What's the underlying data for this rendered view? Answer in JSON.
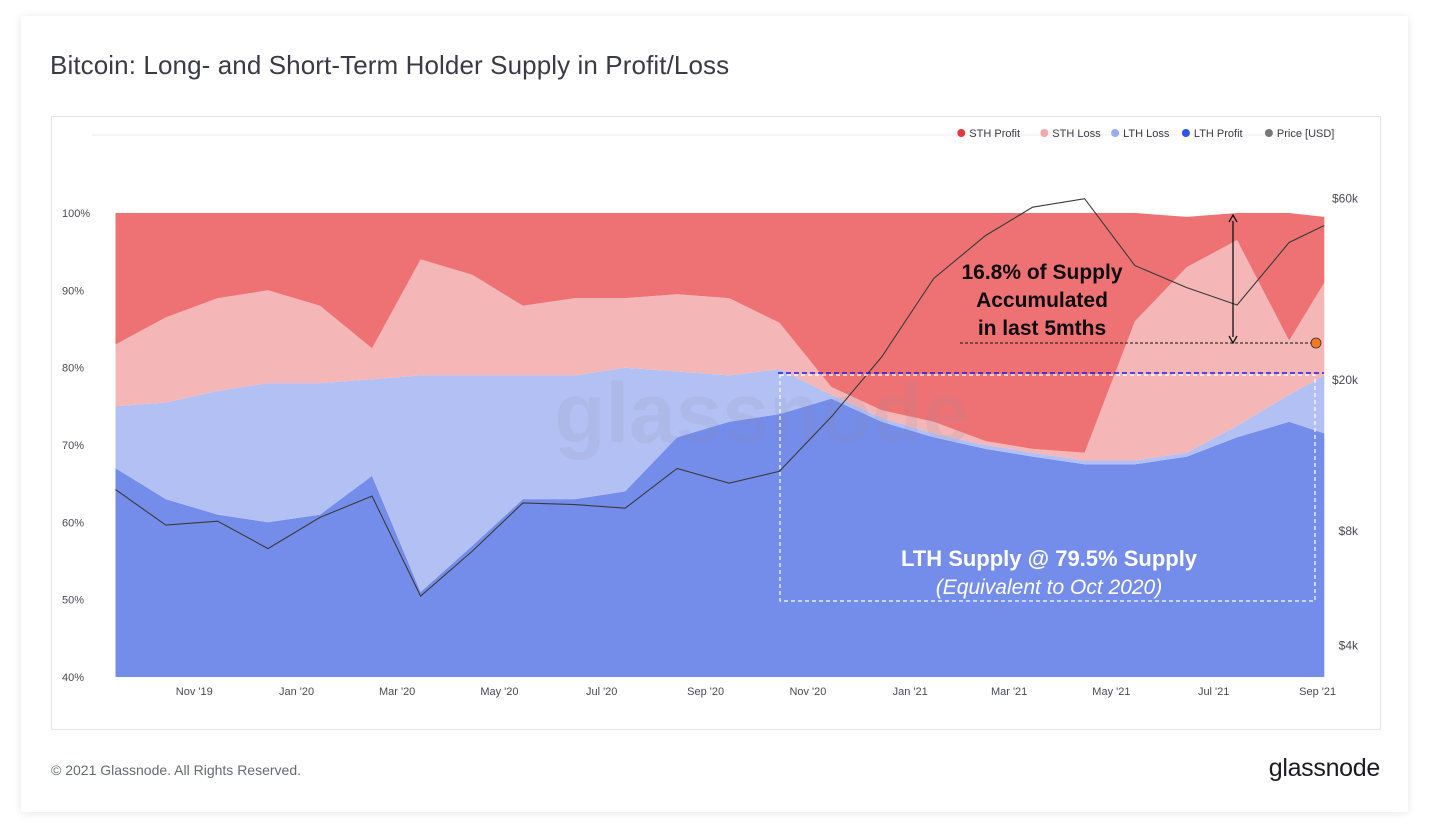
{
  "header": {
    "title": "Bitcoin: Long- and Short-Term Holder Supply in Profit/Loss"
  },
  "footer": {
    "copyright": "© 2021 Glassnode. All Rights Reserved.",
    "brand": "glassnode"
  },
  "watermark": "glassnode",
  "colors": {
    "sth_profit": "#ee7273",
    "sth_loss": "#f4b6b7",
    "lth_loss": "#b3c0f4",
    "lth_profit": "#758dea",
    "price": "#3a3a3a",
    "legend_sth_profit": "#e2393f",
    "legend_sth_loss": "#f2a7aa",
    "legend_lth_loss": "#9aaaf0",
    "legend_lth_profit": "#2d55e6",
    "legend_price": "#777777"
  },
  "chart_data": {
    "type": "area",
    "x_tick_labels": [
      "Nov '19",
      "Jan '20",
      "Mar '20",
      "May '20",
      "Jul '20",
      "Sep '20",
      "Nov '20",
      "Jan '21",
      "Mar '21",
      "May '21",
      "Jul '21",
      "Sep '21"
    ],
    "y_left_ticks": [
      "40%",
      "50%",
      "60%",
      "70%",
      "80%",
      "90%",
      "100%"
    ],
    "y_right_ticks": [
      "$4k",
      "$8k",
      "$20k",
      "$60k"
    ],
    "ylim_left": [
      40,
      100
    ],
    "price_scale": "log",
    "legend": [
      "STH Profit",
      "STH Loss",
      "LTH Loss",
      "LTH Profit",
      "Price [USD]"
    ],
    "legend_position": "top-right",
    "x": [
      "2019-09-15",
      "2019-10-15",
      "2019-11-15",
      "2019-12-15",
      "2020-01-15",
      "2020-02-15",
      "2020-03-15",
      "2020-04-15",
      "2020-05-15",
      "2020-06-15",
      "2020-07-15",
      "2020-08-15",
      "2020-09-15",
      "2020-10-15",
      "2020-11-15",
      "2020-12-15",
      "2021-01-15",
      "2021-02-15",
      "2021-03-15",
      "2021-04-15",
      "2021-05-15",
      "2021-06-15",
      "2021-07-15",
      "2021-08-15",
      "2021-09-05"
    ],
    "series": [
      {
        "name": "LTH Profit",
        "values": [
          67,
          63,
          61,
          60,
          61,
          66,
          51,
          57,
          63,
          63,
          64,
          71,
          73,
          74,
          76,
          73,
          71,
          69.5,
          68.5,
          67.5,
          67.5,
          68.5,
          71,
          73,
          71.5
        ]
      },
      {
        "name": "LTH Loss",
        "values": [
          8,
          12.5,
          16,
          18,
          17,
          12.5,
          28,
          22,
          16,
          16,
          16,
          8.5,
          6,
          5.8,
          0.5,
          0.5,
          0.5,
          0.5,
          0.5,
          0.5,
          0.5,
          0.5,
          1.5,
          3.5,
          7.5
        ]
      },
      {
        "name": "STH Loss",
        "values": [
          8,
          11,
          12,
          12,
          10,
          4,
          15,
          13,
          9,
          10,
          9,
          10,
          10,
          6,
          1,
          1,
          1.5,
          0.5,
          0.5,
          1,
          18,
          24,
          24,
          7,
          12
        ]
      },
      {
        "name": "STH Profit",
        "values": [
          17,
          13.5,
          11,
          10,
          12,
          17.5,
          6,
          8,
          12,
          11,
          11,
          10.5,
          11,
          14.2,
          22.5,
          25.5,
          27,
          29.5,
          30.5,
          31,
          14,
          6.5,
          3.5,
          16.5,
          8.5
        ]
      },
      {
        "name": "Price [USD]",
        "values": [
          10300,
          8300,
          8500,
          7200,
          8700,
          9900,
          5400,
          7100,
          9500,
          9400,
          9200,
          11700,
          10700,
          11500,
          16000,
          23000,
          37000,
          48000,
          57000,
          60000,
          40000,
          35000,
          31500,
          46000,
          51000
        ]
      }
    ]
  },
  "annotations": {
    "accumulation": [
      "16.8% of Supply",
      "Accumulated",
      "in last 5mths"
    ],
    "lth_line1": "LTH Supply @ 79.5% Supply",
    "lth_line2": "(Equivalent to Oct 2020)"
  }
}
